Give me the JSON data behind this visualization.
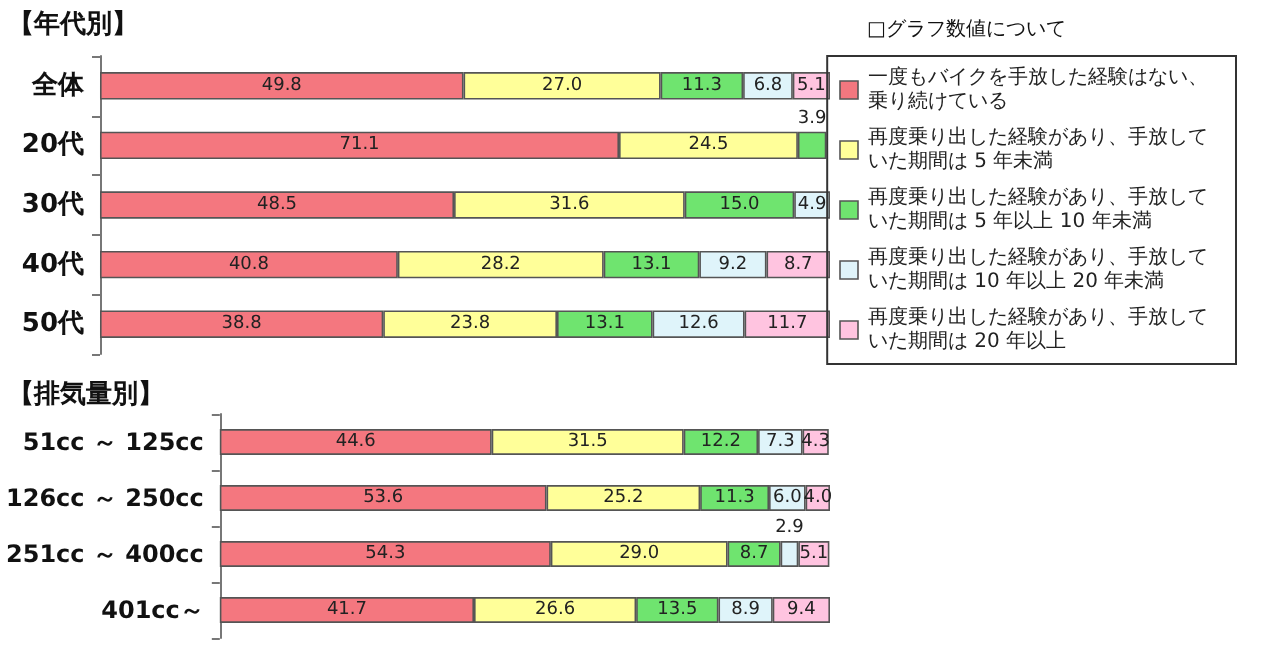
{
  "chart_data": [
    {
      "type": "bar",
      "orientation": "horizontal",
      "stacked": true,
      "title": "【年代別】",
      "legend_title": "□グラフ数値について",
      "legend": "right",
      "categories": [
        "全体",
        "20代",
        "30代",
        "40代",
        "50代"
      ],
      "series": [
        {
          "name": "一度もバイクを手放した経験はない、乗り続けている",
          "color": "#f4777f",
          "values": [
            49.8,
            71.1,
            48.5,
            40.8,
            38.8
          ],
          "value_labels": [
            "49.8",
            "71.1",
            "48.5",
            "40.8",
            "38.8"
          ]
        },
        {
          "name": "再度乗り出した経験があり、手放していた期間は 5 年未満",
          "color": "#ffff99",
          "values": [
            27.0,
            24.5,
            31.6,
            28.2,
            23.8
          ],
          "value_labels": [
            "27.0",
            "24.5",
            "31.6",
            "28.2",
            "23.8"
          ]
        },
        {
          "name": "再度乗り出した経験があり、手放していた期間は 5 年以上 10 年未満",
          "color": "#6fe46f",
          "values": [
            11.3,
            3.9,
            15.0,
            13.1,
            13.1
          ],
          "value_labels": [
            "11.3",
            "3.9",
            "15.0",
            "13.1",
            "13.1"
          ]
        },
        {
          "name": "再度乗り出した経験があり、手放していた期間は 10 年以上 20 年未満",
          "color": "#dff4fa",
          "values": [
            6.8,
            null,
            4.9,
            9.2,
            12.6
          ],
          "value_labels": [
            "6.8",
            null,
            "4.9",
            "9.2",
            "12.6"
          ]
        },
        {
          "name": "再度乗り出した経験があり、手放していた期間は 20 年以上",
          "color": "#ffc4e0",
          "values": [
            5.1,
            null,
            null,
            8.7,
            11.7
          ],
          "value_labels": [
            "5.1",
            null,
            null,
            "8.7",
            "11.7"
          ]
        }
      ]
    },
    {
      "type": "bar",
      "orientation": "horizontal",
      "stacked": true,
      "title": "【排気量別】",
      "categories": [
        "51cc ～ 125cc",
        "126cc ～ 250cc",
        "251cc ～ 400cc",
        "401cc～"
      ],
      "series": [
        {
          "color": "#f4777f",
          "values": [
            44.6,
            53.6,
            54.3,
            41.7
          ],
          "value_labels": [
            "44.6",
            "53.6",
            "54.3",
            "41.7"
          ]
        },
        {
          "color": "#ffff99",
          "values": [
            31.5,
            25.2,
            29.0,
            26.6
          ],
          "value_labels": [
            "31.5",
            "25.2",
            "29.0",
            "26.6"
          ]
        },
        {
          "color": "#6fe46f",
          "values": [
            12.2,
            11.3,
            8.7,
            13.5
          ],
          "value_labels": [
            "12.2",
            "11.3",
            "8.7",
            "13.5"
          ]
        },
        {
          "color": "#dff4fa",
          "values": [
            7.3,
            6.0,
            2.9,
            8.9
          ],
          "value_labels": [
            "7.3",
            "6.0",
            "2.9",
            "8.9"
          ]
        },
        {
          "color": "#ffc4e0",
          "values": [
            4.3,
            4.0,
            5.1,
            9.4
          ],
          "value_labels": [
            "4.3",
            "4.0",
            "5.1",
            "9.4"
          ]
        }
      ]
    }
  ]
}
